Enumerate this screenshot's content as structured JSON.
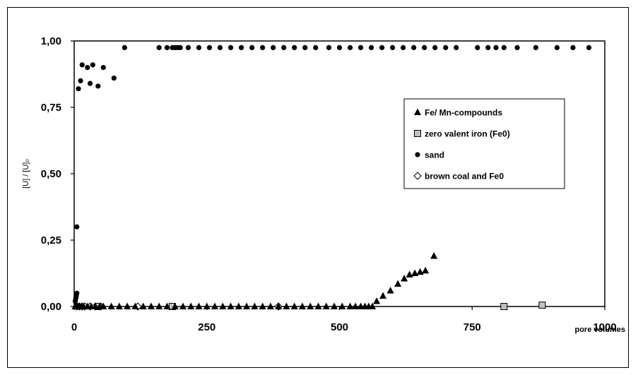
{
  "chart_data": {
    "type": "scatter",
    "title": "",
    "xlabel": "pore volumes",
    "ylabel": "[U] / [U]₀",
    "xlim": [
      0,
      1000
    ],
    "ylim": [
      0,
      1
    ],
    "x_ticks": [
      "0",
      "250",
      "500",
      "750",
      "1000"
    ],
    "y_ticks": [
      "0,00",
      "0,25",
      "0,50",
      "0,75",
      "1,00"
    ],
    "grid": false,
    "legend_position": "right",
    "series": [
      {
        "name": "Fe/ Mn-compounds",
        "marker": "triangle",
        "color": "#000000",
        "points": [
          [
            2,
            0
          ],
          [
            4,
            0
          ],
          [
            6,
            0
          ],
          [
            8,
            0
          ],
          [
            10,
            0
          ],
          [
            14,
            0
          ],
          [
            18,
            0
          ],
          [
            25,
            0
          ],
          [
            32,
            0
          ],
          [
            40,
            0
          ],
          [
            48,
            0
          ],
          [
            55,
            0
          ],
          [
            70,
            0
          ],
          [
            85,
            0
          ],
          [
            100,
            0
          ],
          [
            115,
            0
          ],
          [
            130,
            0
          ],
          [
            145,
            0
          ],
          [
            160,
            0
          ],
          [
            175,
            0
          ],
          [
            190,
            0
          ],
          [
            205,
            0
          ],
          [
            220,
            0
          ],
          [
            235,
            0
          ],
          [
            250,
            0
          ],
          [
            265,
            0
          ],
          [
            280,
            0
          ],
          [
            295,
            0
          ],
          [
            310,
            0
          ],
          [
            325,
            0
          ],
          [
            340,
            0
          ],
          [
            355,
            0
          ],
          [
            370,
            0
          ],
          [
            385,
            0
          ],
          [
            400,
            0
          ],
          [
            415,
            0
          ],
          [
            430,
            0
          ],
          [
            445,
            0
          ],
          [
            460,
            0
          ],
          [
            475,
            0
          ],
          [
            490,
            0
          ],
          [
            505,
            0
          ],
          [
            520,
            0
          ],
          [
            530,
            0
          ],
          [
            540,
            0
          ],
          [
            548,
            0
          ],
          [
            555,
            0
          ],
          [
            562,
            0
          ],
          [
            570,
            0.02
          ],
          [
            582,
            0.04
          ],
          [
            596,
            0.06
          ],
          [
            610,
            0.085
          ],
          [
            622,
            0.105
          ],
          [
            632,
            0.12
          ],
          [
            642,
            0.125
          ],
          [
            652,
            0.13
          ],
          [
            662,
            0.135
          ],
          [
            678,
            0.19
          ]
        ]
      },
      {
        "name": "zero valent iron (Fe0)",
        "marker": "square",
        "color": "#c0c0c0",
        "points": [
          [
            45,
            0
          ],
          [
            185,
            0
          ],
          [
            810,
            0
          ],
          [
            882,
            0.005
          ]
        ]
      },
      {
        "name": "sand",
        "marker": "circle",
        "color": "#000000",
        "points": [
          [
            2,
            0.02
          ],
          [
            3,
            0.03
          ],
          [
            4,
            0.04
          ],
          [
            5,
            0.05
          ],
          [
            5,
            0.3
          ],
          [
            8,
            0.82
          ],
          [
            12,
            0.85
          ],
          [
            15,
            0.91
          ],
          [
            25,
            0.9
          ],
          [
            30,
            0.84
          ],
          [
            35,
            0.91
          ],
          [
            45,
            0.83
          ],
          [
            55,
            0.9
          ],
          [
            75,
            0.86
          ],
          [
            95,
            0.975
          ],
          [
            160,
            0.975
          ],
          [
            175,
            0.975
          ],
          [
            185,
            0.975
          ],
          [
            190,
            0.975
          ],
          [
            195,
            0.975
          ],
          [
            200,
            0.975
          ],
          [
            215,
            0.975
          ],
          [
            235,
            0.975
          ],
          [
            255,
            0.975
          ],
          [
            275,
            0.975
          ],
          [
            295,
            0.975
          ],
          [
            315,
            0.975
          ],
          [
            335,
            0.975
          ],
          [
            355,
            0.975
          ],
          [
            375,
            0.975
          ],
          [
            395,
            0.975
          ],
          [
            415,
            0.975
          ],
          [
            435,
            0.975
          ],
          [
            455,
            0.975
          ],
          [
            480,
            0.975
          ],
          [
            500,
            0.975
          ],
          [
            520,
            0.975
          ],
          [
            540,
            0.975
          ],
          [
            560,
            0.975
          ],
          [
            580,
            0.975
          ],
          [
            600,
            0.975
          ],
          [
            620,
            0.975
          ],
          [
            640,
            0.975
          ],
          [
            660,
            0.975
          ],
          [
            680,
            0.975
          ],
          [
            700,
            0.975
          ],
          [
            720,
            0.975
          ],
          [
            760,
            0.975
          ],
          [
            780,
            0.975
          ],
          [
            795,
            0.975
          ],
          [
            810,
            0.975
          ],
          [
            835,
            0.975
          ],
          [
            870,
            0.975
          ],
          [
            910,
            0.975
          ],
          [
            940,
            0.975
          ],
          [
            970,
            0.975
          ]
        ]
      },
      {
        "name": "brown coal and Fe0",
        "marker": "diamond",
        "color": "#ffffff",
        "points": [
          [
            5,
            0
          ],
          [
            10,
            0
          ],
          [
            15,
            0
          ],
          [
            20,
            0
          ],
          [
            30,
            0
          ],
          [
            40,
            0
          ],
          [
            50,
            0
          ],
          [
            120,
            0
          ],
          [
            385,
            0
          ]
        ]
      }
    ]
  }
}
